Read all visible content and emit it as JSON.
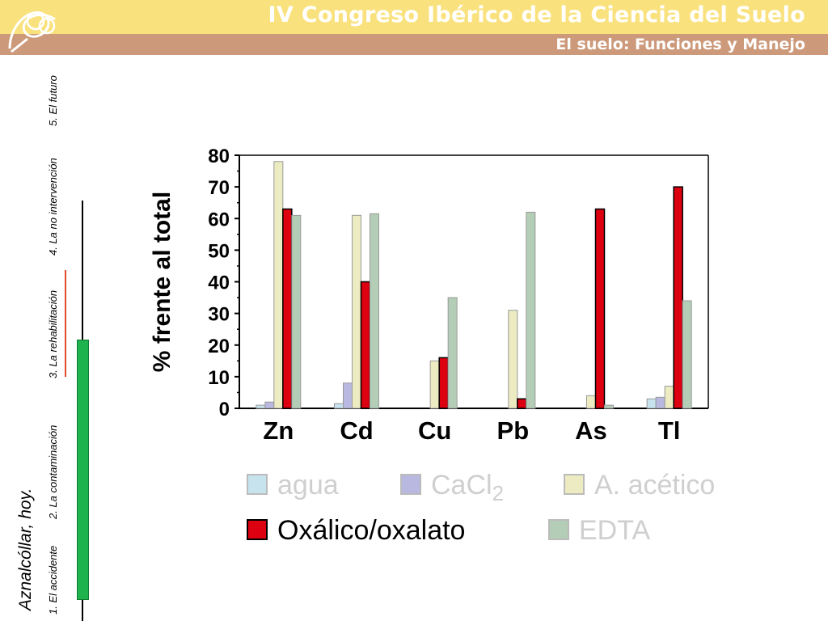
{
  "header": {
    "title": "IV Congreso Ibérico de la Ciencia del Suelo",
    "subtitle": "El suelo: Funciones y Manejo",
    "logo_icon": "congress-logo-icon"
  },
  "sidebar": {
    "title": "Aznalcóllar, hoy.",
    "items": [
      {
        "label": "1. El accidente"
      },
      {
        "label": "2. La contaminación"
      },
      {
        "label": "3. La rehabilitación"
      },
      {
        "label": "4. La no intervención"
      },
      {
        "label": "5. El futuro"
      }
    ],
    "colors": {
      "marker_red": "#e04a2a",
      "marker_green": "#1fb34d"
    }
  },
  "chart_data": {
    "type": "bar",
    "title": "",
    "ylabel": "% frente al total",
    "xlabel": "",
    "ylim": [
      0,
      80
    ],
    "yticks": [
      0,
      10,
      20,
      30,
      40,
      50,
      60,
      70,
      80
    ],
    "grid": false,
    "legend_position": "bottom",
    "categories": [
      "Zn",
      "Cd",
      "Cu",
      "Pb",
      "As",
      "Tl"
    ],
    "series": [
      {
        "name": "agua",
        "color": "#c6e3ee",
        "values": [
          1,
          1.5,
          0,
          0,
          0,
          3
        ]
      },
      {
        "name": "CaCl",
        "name_subscript": "2",
        "color": "#b8b8e0",
        "values": [
          2,
          8,
          0,
          0,
          0,
          3.5
        ]
      },
      {
        "name": "A. acético",
        "color": "#ecebc2",
        "values": [
          78,
          61,
          15,
          31,
          4,
          7
        ]
      },
      {
        "name": "Oxálico/oxalato",
        "color": "#dd0010",
        "values": [
          63,
          40,
          16,
          3,
          63,
          70
        ]
      },
      {
        "name": "EDTA",
        "color": "#b4cdb6",
        "values": [
          61,
          61.5,
          35,
          62,
          1,
          34
        ]
      }
    ]
  }
}
